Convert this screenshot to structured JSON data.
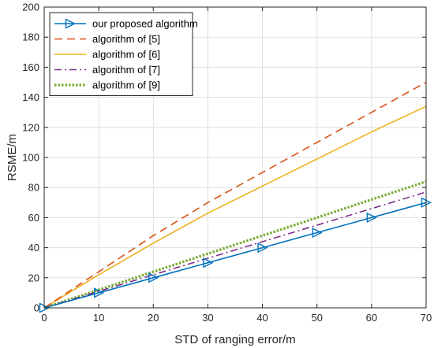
{
  "chart_data": {
    "type": "line",
    "xlabel": "STD of ranging error/m",
    "ylabel": "RSME/m",
    "xlim": [
      0,
      70
    ],
    "ylim": [
      0,
      200
    ],
    "x_ticks": [
      0,
      10,
      20,
      30,
      40,
      50,
      60,
      70
    ],
    "y_ticks": [
      0,
      20,
      40,
      60,
      80,
      100,
      120,
      140,
      160,
      180,
      200
    ],
    "grid": true,
    "legend_position": "top-left",
    "series": [
      {
        "name": "our proposed algorithm",
        "color": "#0072BD",
        "style": "solid",
        "marker": "triangle-right",
        "x": [
          0,
          10,
          20,
          30,
          40,
          50,
          60,
          70
        ],
        "values": [
          0,
          10,
          20,
          30,
          40,
          50,
          60,
          70
        ]
      },
      {
        "name": "algorithm of [5]",
        "color": "#D95319",
        "style": "dashed",
        "marker": "none",
        "x": [
          0,
          10,
          20,
          30,
          40,
          50,
          60,
          70
        ],
        "values": [
          0,
          24,
          48,
          70,
          90,
          110,
          130,
          150
        ]
      },
      {
        "name": "algorithm of [6]",
        "color": "#EDB120",
        "style": "solid",
        "marker": "none",
        "x": [
          0,
          10,
          20,
          30,
          40,
          50,
          60,
          70
        ],
        "values": [
          0,
          22,
          43,
          63,
          81,
          99,
          117,
          134
        ]
      },
      {
        "name": "algorithm of [7]",
        "color": "#7E2F8E",
        "style": "dashdot",
        "marker": "none",
        "x": [
          0,
          10,
          20,
          30,
          40,
          50,
          60,
          70
        ],
        "values": [
          0,
          11,
          22,
          33,
          44,
          55,
          66,
          77
        ]
      },
      {
        "name": "algorithm of [9]",
        "color": "#77AC30",
        "style": "dotted",
        "marker": "none",
        "x": [
          0,
          10,
          20,
          30,
          40,
          50,
          60,
          70
        ],
        "values": [
          0,
          12,
          24,
          36,
          48,
          60,
          72,
          84
        ]
      }
    ]
  }
}
